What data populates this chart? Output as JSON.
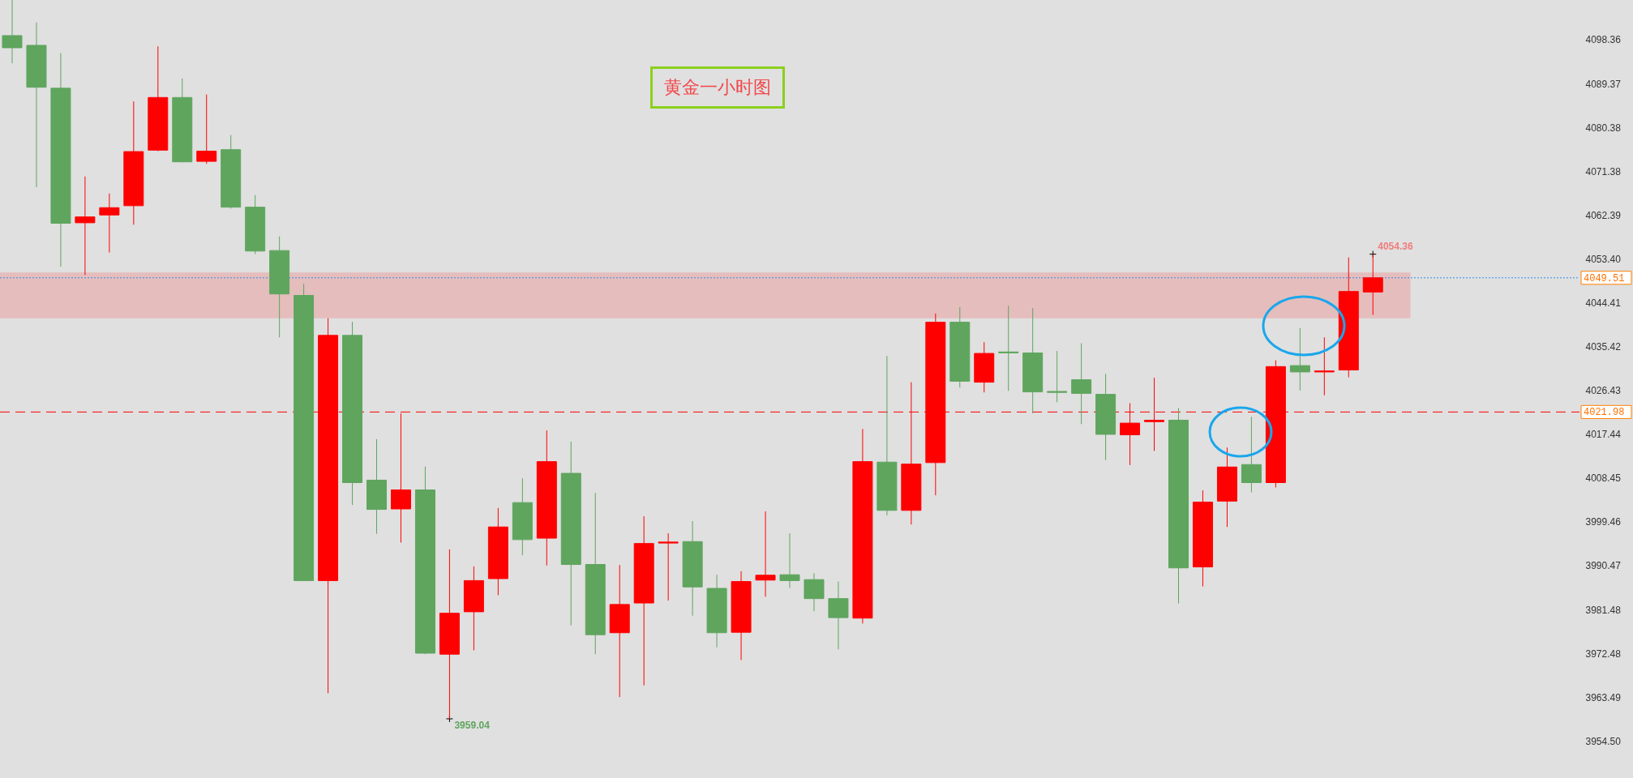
{
  "chart_data": {
    "type": "candlestick",
    "title": "黄金一小时图",
    "categories": [
      null,
      null,
      null,
      null,
      null,
      null,
      null,
      null,
      null,
      null,
      null,
      null,
      null,
      null,
      null,
      null,
      null,
      null,
      null,
      null,
      null,
      null,
      null,
      null,
      null,
      null,
      null,
      null,
      null,
      null,
      null,
      null,
      null,
      null,
      null,
      null,
      null,
      null,
      null,
      null,
      null,
      null,
      null,
      null,
      null,
      null,
      null,
      null,
      null,
      null,
      null,
      null,
      null,
      null,
      null,
      null,
      null,
      null,
      null,
      null,
      null,
      null,
      null,
      null,
      null
    ],
    "ohlc": [
      [
        4099.2,
        4106.5,
        4093.5,
        4096.7
      ],
      [
        4097.2,
        4101.9,
        4068.1,
        4088.6
      ],
      [
        4088.4,
        4095.6,
        4051.8,
        4060.7
      ],
      [
        4060.8,
        4070.3,
        4050.1,
        4062.0
      ],
      [
        4062.4,
        4066.8,
        4054.7,
        4063.9
      ],
      [
        4064.3,
        4085.7,
        4060.4,
        4075.4
      ],
      [
        4075.7,
        4097.0,
        4075.5,
        4086.5
      ],
      [
        4086.5,
        4090.4,
        4073.2,
        4073.3
      ],
      [
        4073.4,
        4087.1,
        4072.9,
        4075.5
      ],
      [
        4075.8,
        4078.8,
        4063.7,
        4064.0
      ],
      [
        4064.0,
        4066.5,
        4054.4,
        4055.0
      ],
      [
        4055.1,
        4058.0,
        4037.3,
        4046.2
      ],
      [
        4045.9,
        4048.3,
        3987.3,
        3987.4
      ],
      [
        3987.4,
        4041.2,
        3964.3,
        4037.7
      ],
      [
        4037.7,
        4040.5,
        4002.9,
        4007.5
      ],
      [
        4008.0,
        4016.4,
        3997.0,
        4002.0
      ],
      [
        4002.1,
        4021.7,
        3995.2,
        4006.0
      ],
      [
        4006.0,
        4010.8,
        3972.3,
        3972.5
      ],
      [
        3972.3,
        3993.8,
        3959.04,
        3980.7
      ],
      [
        3981.0,
        3990.3,
        3973.1,
        3987.4
      ],
      [
        3987.8,
        4002.3,
        3984.4,
        3998.4
      ],
      [
        4003.4,
        4008.4,
        3992.6,
        3995.8
      ],
      [
        3996.1,
        4018.2,
        3990.5,
        4011.8
      ],
      [
        4009.4,
        4015.9,
        3978.2,
        3990.7
      ],
      [
        3990.7,
        4005.4,
        3972.3,
        3976.3
      ],
      [
        3976.7,
        3990.6,
        3963.5,
        3982.5
      ],
      [
        3982.8,
        4000.6,
        3965.9,
        3995.0
      ],
      [
        3995.1,
        3997.1,
        3983.3,
        3995.3
      ],
      [
        3995.4,
        3999.6,
        3980.2,
        3986.1
      ],
      [
        3985.8,
        3988.6,
        3973.7,
        3976.7
      ],
      [
        3976.8,
        3989.3,
        3971.1,
        3987.2
      ],
      [
        3987.5,
        4001.6,
        3984.1,
        3988.5
      ],
      [
        3988.6,
        3997.1,
        3985.9,
        3987.4
      ],
      [
        3987.6,
        3988.9,
        3981.1,
        3983.7
      ],
      [
        3983.7,
        3987.2,
        3973.3,
        3979.8
      ],
      [
        3979.7,
        4018.5,
        3978.6,
        4011.8
      ],
      [
        4011.7,
        4033.5,
        4000.8,
        4001.8
      ],
      [
        4001.8,
        4028.1,
        3998.9,
        4011.3
      ],
      [
        4011.6,
        4042.2,
        4004.9,
        4040.4
      ],
      [
        4040.4,
        4043.5,
        4027.0,
        4028.3
      ],
      [
        4028.1,
        4036.3,
        4026.0,
        4034.0
      ],
      [
        4034.3,
        4043.8,
        4026.3,
        4034.1
      ],
      [
        4034.1,
        4043.3,
        4021.7,
        4026.1
      ],
      [
        4026.2,
        4034.5,
        4024.0,
        4026.0
      ],
      [
        4028.6,
        4036.1,
        4019.5,
        4025.8
      ],
      [
        4025.6,
        4029.8,
        4012.1,
        4017.4
      ],
      [
        4017.3,
        4023.8,
        4011.1,
        4019.7
      ],
      [
        4020.0,
        4029.0,
        4014.0,
        4020.3
      ],
      [
        4020.3,
        4022.8,
        3982.7,
        3990.0
      ],
      [
        3990.2,
        4005.9,
        3986.2,
        4003.5
      ],
      [
        4003.7,
        4014.7,
        3998.4,
        4010.7
      ],
      [
        4011.2,
        4021.0,
        4005.5,
        4007.5
      ],
      [
        4007.5,
        4032.6,
        4006.5,
        4031.3
      ],
      [
        4031.5,
        4039.2,
        4026.4,
        4030.2
      ],
      [
        4030.2,
        4037.3,
        4025.4,
        4030.4
      ],
      [
        4030.6,
        4053.7,
        4029.1,
        4046.7
      ],
      [
        4046.6,
        4054.36,
        4041.9,
        4049.51
      ],
      null,
      null,
      null,
      null,
      null,
      null,
      null,
      null
    ],
    "colors": [
      "#5fa55e",
      "#5fa55e",
      "#5fa55e",
      "#ff0000",
      "#ff0000",
      "#ff0000",
      "#ff0000",
      "#5fa55e",
      "#ff0000",
      "#5fa55e",
      "#5fa55e",
      "#5fa55e",
      "#5fa55e",
      "#ff0000",
      "#5fa55e",
      "#5fa55e",
      "#ff0000",
      "#5fa55e",
      "#ff0000",
      "#ff0000",
      "#ff0000",
      "#5fa55e",
      "#ff0000",
      "#5fa55e",
      "#5fa55e",
      "#ff0000",
      "#ff0000",
      "#ff0000",
      "#5fa55e",
      "#5fa55e",
      "#ff0000",
      "#ff0000",
      "#5fa55e",
      "#5fa55e",
      "#5fa55e",
      "#ff0000",
      "#5fa55e",
      "#ff0000",
      "#ff0000",
      "#5fa55e",
      "#ff0000",
      "#5fa55e",
      "#5fa55e",
      "#5fa55e",
      "#5fa55e",
      "#5fa55e",
      "#ff0000",
      "#ff0000",
      "#5fa55e",
      "#ff0000",
      "#ff0000",
      "#5fa55e",
      "#ff0000",
      "#5fa55e",
      "#ff0000",
      "#ff0000",
      "#ff0000",
      null,
      null,
      null,
      null,
      null,
      null,
      null,
      null
    ],
    "ylim": [
      3946.9,
      4106.5
    ],
    "yticks": [
      4098.36,
      4089.37,
      4080.38,
      4071.38,
      4062.39,
      {
        "value": 4053.4,
        "label": "4053.40"
      },
      4044.41,
      4035.42,
      4026.43,
      4017.44,
      4008.45,
      3999.46,
      3990.47,
      3981.48,
      3972.48,
      3963.49,
      {
        "value": 3954.5,
        "label": "3954.50"
      }
    ],
    "tick_labels": "y",
    "bands": [
      {
        "axis": "y",
        "from": 4041.2,
        "to": 4050.6,
        "color": "#e5bdbd"
      }
    ],
    "ref_lines": [
      {
        "axis": "y",
        "value": 4049.51,
        "label": "4049.51",
        "color": "#2f8cf0",
        "line_style": "dotted"
      },
      {
        "axis": "y",
        "value": 4021.98,
        "label": "4021.98",
        "color": "#ff0000",
        "line_style": "dashed"
      }
    ],
    "annotations": [
      "4054.36",
      "3959.04"
    ]
  }
}
